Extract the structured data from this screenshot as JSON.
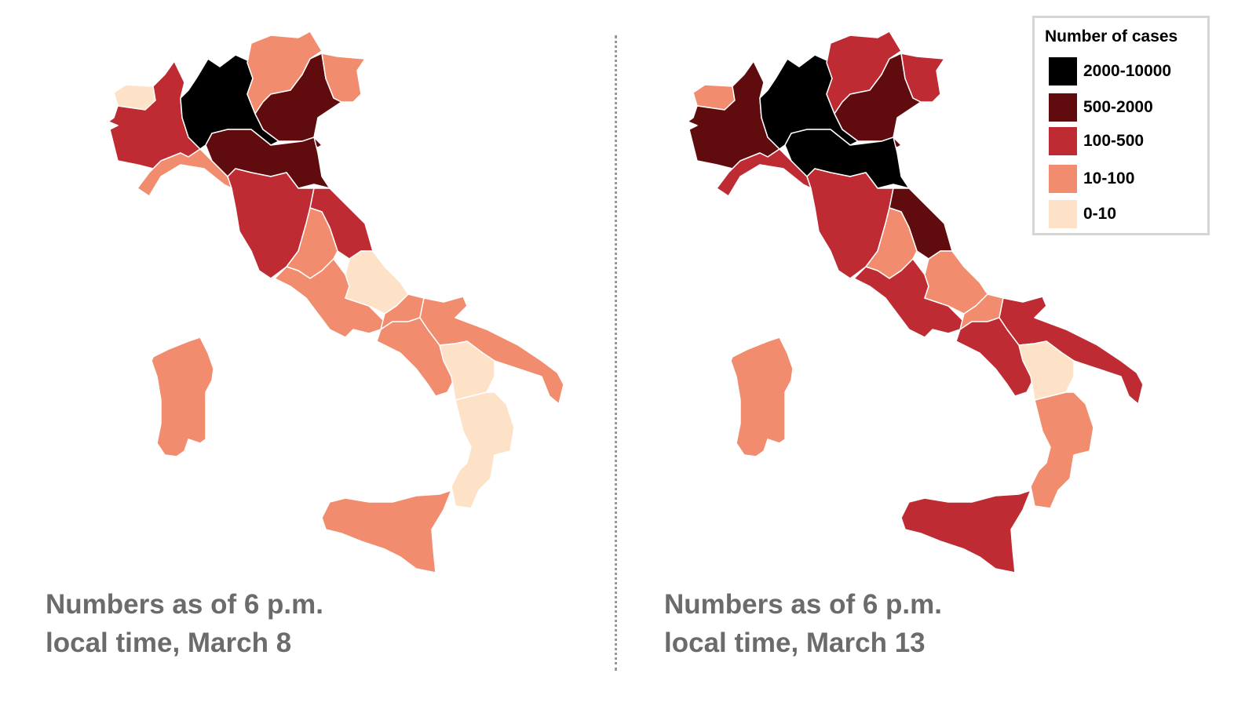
{
  "legend": {
    "title": "Number of cases",
    "bins": [
      {
        "label": "2000-10000",
        "color": "#000000"
      },
      {
        "label": "500-2000",
        "color": "#600b0e"
      },
      {
        "label": "100-500",
        "color": "#bf2b32"
      },
      {
        "label": "10-100",
        "color": "#f28c6e"
      },
      {
        "label": "0-10",
        "color": "#fde2c8"
      }
    ]
  },
  "maps": [
    {
      "caption_line1": "Numbers as of 6 p.m.",
      "caption_line2": "local time, March 8",
      "region_bins": [
        "0-10",
        "100-500",
        "2000-10000",
        "10-100",
        "500-2000",
        "10-100",
        "10-100",
        "500-2000",
        "100-500",
        "100-500",
        "10-100",
        "10-100",
        "0-10",
        "10-100",
        "10-100",
        "10-100",
        "0-10",
        "0-10",
        "10-100",
        "10-100"
      ]
    },
    {
      "caption_line1": "Numbers as of 6 p.m.",
      "caption_line2": "local time, March 13",
      "region_bins": [
        "10-100",
        "500-2000",
        "2000-10000",
        "100-500",
        "500-2000",
        "100-500",
        "100-500",
        "2000-10000",
        "100-500",
        "500-2000",
        "10-100",
        "100-500",
        "10-100",
        "10-100",
        "100-500",
        "100-500",
        "0-10",
        "10-100",
        "100-500",
        "10-100"
      ]
    }
  ]
}
